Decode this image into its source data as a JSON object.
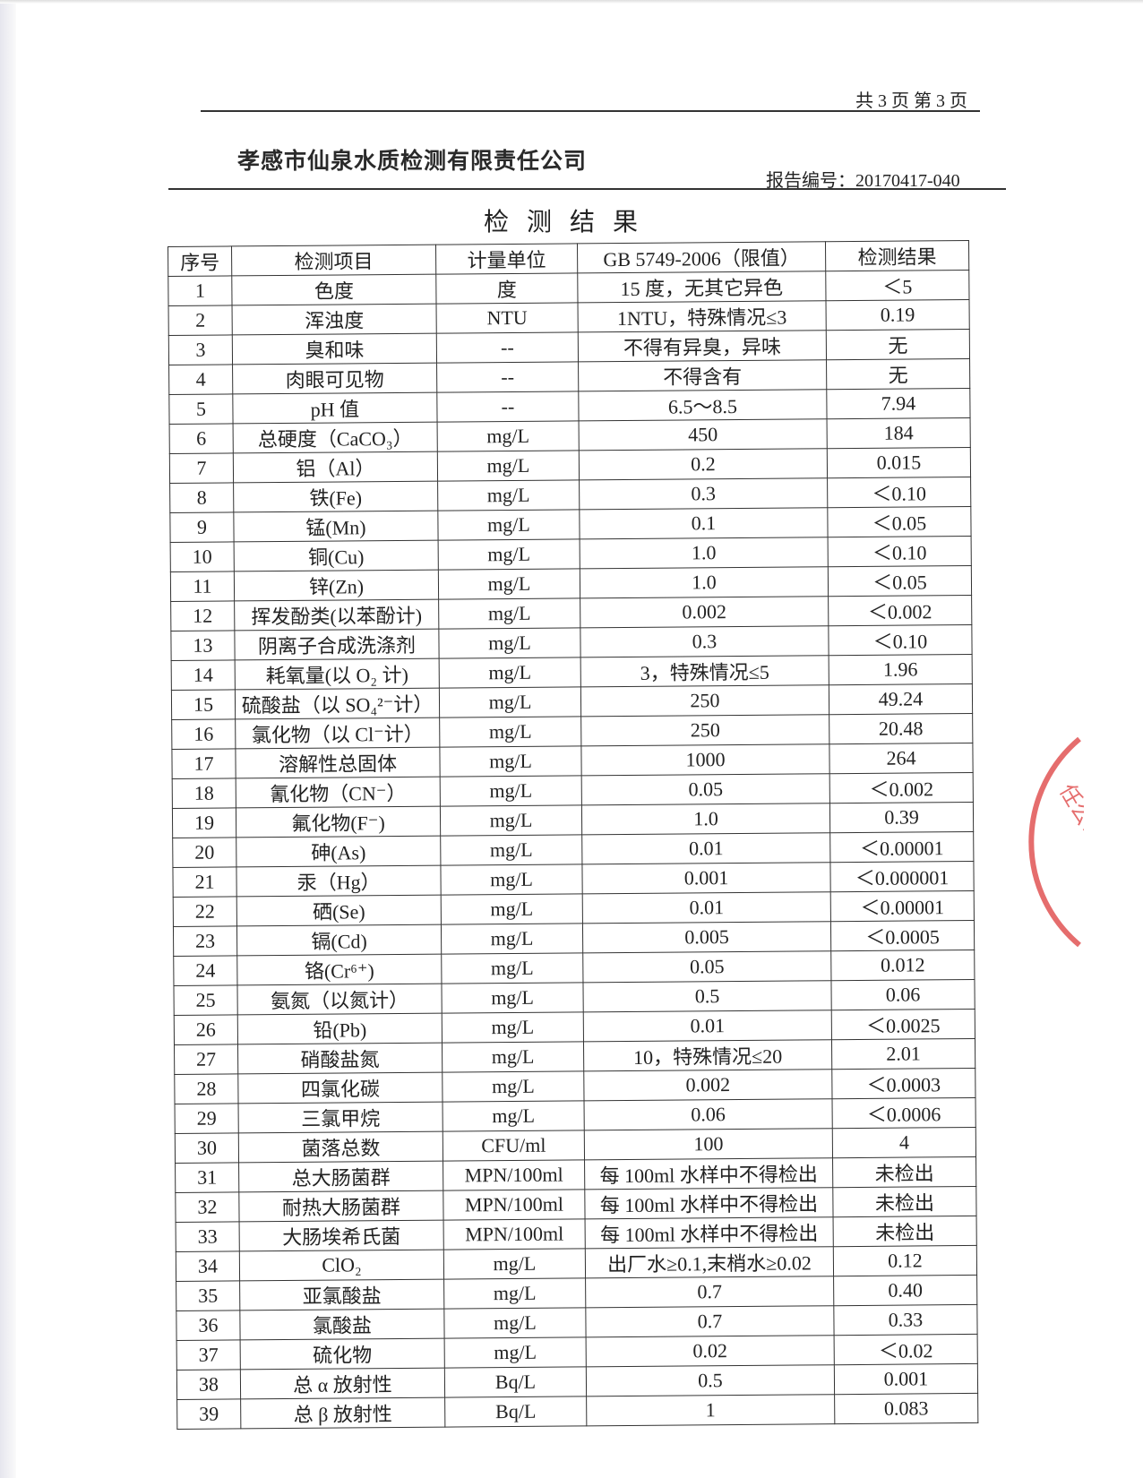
{
  "header": {
    "page_info": "共 3 页  第 3 页",
    "company": "孝感市仙泉水质检测有限责任公司",
    "report_no": "报告编号：20170417-040",
    "title": "检测结果"
  },
  "stamp": {
    "text": "任公司",
    "color": "#dc3c3c"
  },
  "table": {
    "columns": [
      "序号",
      "检测项目",
      "计量单位",
      "GB 5749-2006（限值）",
      "检测结果"
    ],
    "rows": [
      [
        "1",
        "色度",
        "度",
        "15 度，无其它异色",
        "＜5"
      ],
      [
        "2",
        "浑浊度",
        "NTU",
        "1NTU，特殊情况≤3",
        "0.19"
      ],
      [
        "3",
        "臭和味",
        "--",
        "不得有异臭，异味",
        "无"
      ],
      [
        "4",
        "肉眼可见物",
        "--",
        "不得含有",
        "无"
      ],
      [
        "5",
        "pH 值",
        "--",
        "6.5～8.5",
        "7.94"
      ],
      [
        "6",
        "总硬度（CaCO₃）",
        "mg/L",
        "450",
        "184"
      ],
      [
        "7",
        "铝（Al）",
        "mg/L",
        "0.2",
        "0.015"
      ],
      [
        "8",
        "铁(Fe)",
        "mg/L",
        "0.3",
        "＜0.10"
      ],
      [
        "9",
        "锰(Mn)",
        "mg/L",
        "0.1",
        "＜0.05"
      ],
      [
        "10",
        "铜(Cu)",
        "mg/L",
        "1.0",
        "＜0.10"
      ],
      [
        "11",
        "锌(Zn)",
        "mg/L",
        "1.0",
        "＜0.05"
      ],
      [
        "12",
        "挥发酚类(以苯酚计)",
        "mg/L",
        "0.002",
        "＜0.002"
      ],
      [
        "13",
        "阴离子合成洗涤剂",
        "mg/L",
        "0.3",
        "＜0.10"
      ],
      [
        "14",
        "耗氧量(以 O₂ 计)",
        "mg/L",
        "3，特殊情况≤5",
        "1.96"
      ],
      [
        "15",
        "硫酸盐（以 SO₄²⁻计）",
        "mg/L",
        "250",
        "49.24"
      ],
      [
        "16",
        "氯化物（以 Cl⁻计）",
        "mg/L",
        "250",
        "20.48"
      ],
      [
        "17",
        "溶解性总固体",
        "mg/L",
        "1000",
        "264"
      ],
      [
        "18",
        "氰化物（CN⁻）",
        "mg/L",
        "0.05",
        "＜0.002"
      ],
      [
        "19",
        "氟化物(F⁻)",
        "mg/L",
        "1.0",
        "0.39"
      ],
      [
        "20",
        "砷(As)",
        "mg/L",
        "0.01",
        "＜0.00001"
      ],
      [
        "21",
        "汞（Hg）",
        "mg/L",
        "0.001",
        "＜0.000001"
      ],
      [
        "22",
        "硒(Se)",
        "mg/L",
        "0.01",
        "＜0.00001"
      ],
      [
        "23",
        "镉(Cd)",
        "mg/L",
        "0.005",
        "＜0.0005"
      ],
      [
        "24",
        "铬(Cr⁶⁺)",
        "mg/L",
        "0.05",
        "0.012"
      ],
      [
        "25",
        "氨氮（以氮计）",
        "mg/L",
        "0.5",
        "0.06"
      ],
      [
        "26",
        "铅(Pb)",
        "mg/L",
        "0.01",
        "＜0.0025"
      ],
      [
        "27",
        "硝酸盐氮",
        "mg/L",
        "10，特殊情况≤20",
        "2.01"
      ],
      [
        "28",
        "四氯化碳",
        "mg/L",
        "0.002",
        "＜0.0003"
      ],
      [
        "29",
        "三氯甲烷",
        "mg/L",
        "0.06",
        "＜0.0006"
      ],
      [
        "30",
        "菌落总数",
        "CFU/ml",
        "100",
        "4"
      ],
      [
        "31",
        "总大肠菌群",
        "MPN/100ml",
        "每 100ml 水样中不得检出",
        "未检出"
      ],
      [
        "32",
        "耐热大肠菌群",
        "MPN/100ml",
        "每 100ml 水样中不得检出",
        "未检出"
      ],
      [
        "33",
        "大肠埃希氏菌",
        "MPN/100ml",
        "每 100ml 水样中不得检出",
        "未检出"
      ],
      [
        "34",
        "ClO₂",
        "mg/L",
        "出厂水≥0.1,末梢水≥0.02",
        "0.12"
      ],
      [
        "35",
        "亚氯酸盐",
        "mg/L",
        "0.7",
        "0.40"
      ],
      [
        "36",
        "氯酸盐",
        "mg/L",
        "0.7",
        "0.33"
      ],
      [
        "37",
        "硫化物",
        "mg/L",
        "0.02",
        "＜0.02"
      ],
      [
        "38",
        "总 α 放射性",
        "Bq/L",
        "0.5",
        "0.001"
      ],
      [
        "39",
        "总 β 放射性",
        "Bq/L",
        "1",
        "0.083"
      ]
    ]
  }
}
